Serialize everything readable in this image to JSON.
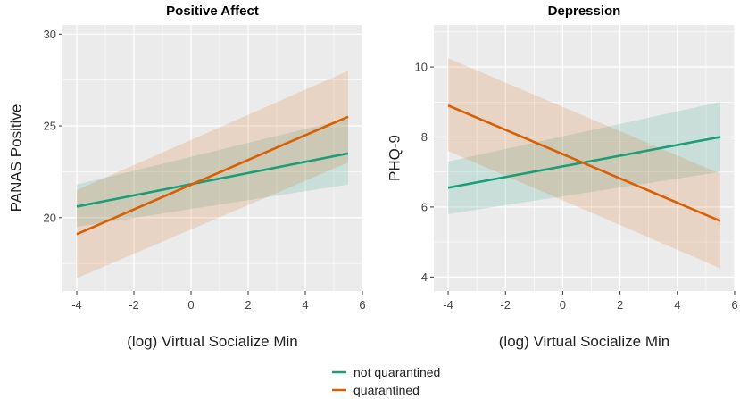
{
  "chart_data": [
    {
      "type": "line",
      "title": "Positive Affect",
      "xlabel": "(log) Virtual Socialize Min",
      "ylabel": "PANAS Positive",
      "xlim": [
        -4.5,
        6
      ],
      "ylim": [
        16,
        30.5
      ],
      "xticks": [
        -4,
        -2,
        0,
        2,
        4,
        6
      ],
      "xtick_labels": [
        "-4",
        "-2",
        "0",
        "2",
        "4",
        "6"
      ],
      "yticks": [
        20,
        25,
        30
      ],
      "ytick_labels": [
        "20",
        "25",
        "30"
      ],
      "series": [
        {
          "name": "not quarantined",
          "color": "#1b9e77",
          "x": [
            -4,
            5.5
          ],
          "y": [
            20.6,
            23.5
          ],
          "lower": [
            19.5,
            21.8
          ],
          "upper": [
            21.8,
            25.4
          ]
        },
        {
          "name": "quarantined",
          "color": "#d95f02",
          "x": [
            -4,
            5.5
          ],
          "y": [
            19.1,
            25.5
          ],
          "lower": [
            16.7,
            23.0
          ],
          "upper": [
            21.5,
            28.0
          ]
        }
      ]
    },
    {
      "type": "line",
      "title": "Depression",
      "xlabel": "(log) Virtual Socialize Min",
      "ylabel": "PHQ-9",
      "xlim": [
        -4.5,
        6
      ],
      "ylim": [
        3.6,
        11.2
      ],
      "xticks": [
        -4,
        -2,
        0,
        2,
        4,
        6
      ],
      "xtick_labels": [
        "-4",
        "-2",
        "0",
        "2",
        "4",
        "6"
      ],
      "yticks": [
        4,
        6,
        8,
        10
      ],
      "ytick_labels": [
        "4",
        "6",
        "8",
        "10"
      ],
      "series": [
        {
          "name": "not quarantined",
          "color": "#1b9e77",
          "x": [
            -4,
            5.5
          ],
          "y": [
            6.55,
            8.0
          ],
          "lower": [
            5.8,
            7.0
          ],
          "upper": [
            7.3,
            9.0
          ]
        },
        {
          "name": "quarantined",
          "color": "#d95f02",
          "x": [
            -4,
            5.5
          ],
          "y": [
            8.9,
            5.6
          ],
          "lower": [
            7.6,
            4.25
          ],
          "upper": [
            10.25,
            6.95
          ]
        }
      ]
    }
  ],
  "legend": {
    "items": [
      {
        "label": "not quarantined",
        "color": "#1b9e77"
      },
      {
        "label": "quarantined",
        "color": "#d95f02"
      }
    ]
  }
}
